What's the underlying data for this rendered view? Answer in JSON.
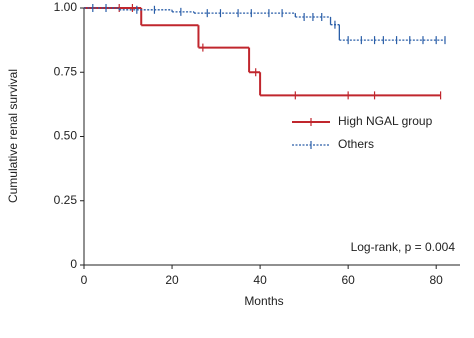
{
  "chart_data": {
    "type": "step",
    "x_label": "Months",
    "y_label": "Cumulative renal survival",
    "annotation": "Log-rank, p = 0.004",
    "xlim": [
      0,
      82
    ],
    "ylim": [
      0,
      1
    ],
    "xticks": [
      0,
      20,
      40,
      60,
      80
    ],
    "yticks": [
      {
        "value": 0,
        "label": "0"
      },
      {
        "value": 0.25,
        "label": "0.25"
      },
      {
        "value": 0.5,
        "label": "0.50"
      },
      {
        "value": 0.75,
        "label": "0.75"
      },
      {
        "value": 1,
        "label": "1.00"
      }
    ],
    "legend": "right",
    "series": [
      {
        "name": "High NGAL group",
        "color": "#c0262d",
        "dash": false,
        "x": [
          0,
          13,
          26,
          37.5,
          40
        ],
        "values": [
          1,
          0.933,
          0.846,
          0.75,
          0.66
        ],
        "censor_x": [
          8,
          11,
          27,
          39,
          48,
          60,
          66,
          81
        ]
      },
      {
        "name": "Others",
        "color": "#2a5ea8",
        "dash": true,
        "x": [
          0,
          8,
          20,
          25,
          48,
          56,
          58
        ],
        "values": [
          1,
          0.993,
          0.985,
          0.98,
          0.965,
          0.935,
          0.875
        ],
        "censor_x": [
          2,
          5,
          12,
          16,
          22,
          28,
          31,
          35,
          38,
          42,
          45,
          50,
          52,
          54,
          57,
          60,
          63,
          66,
          68,
          71,
          74,
          77,
          80,
          82
        ]
      }
    ]
  }
}
